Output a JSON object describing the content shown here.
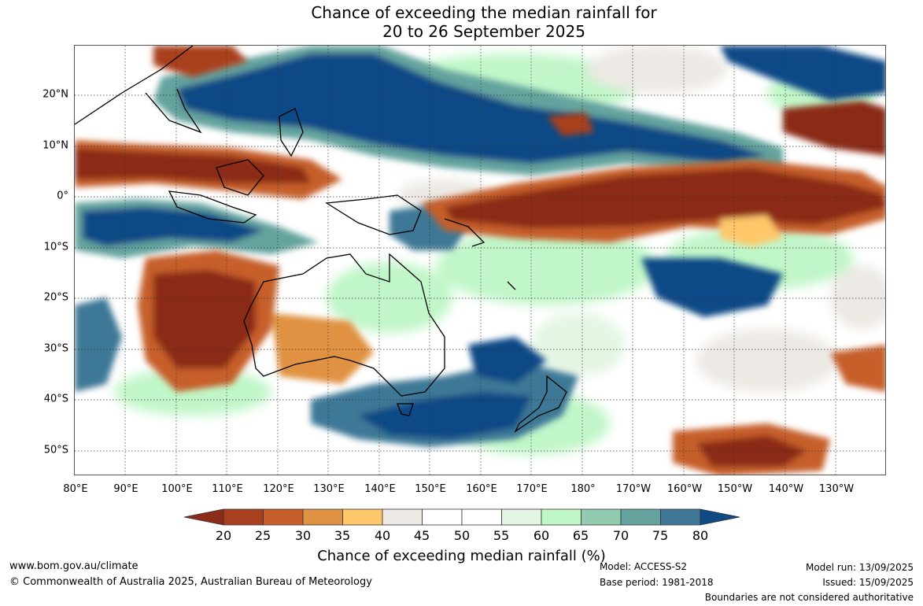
{
  "title": {
    "line1": "Chance of exceeding the median rainfall for",
    "line2": "20 to 26 September 2025"
  },
  "map": {
    "lat_labels": [
      "20°N",
      "10°N",
      "0°",
      "10°S",
      "20°S",
      "30°S",
      "40°S",
      "50°S"
    ],
    "lon_labels": [
      "80°E",
      "90°E",
      "100°E",
      "110°E",
      "120°E",
      "130°E",
      "140°E",
      "150°E",
      "160°E",
      "170°E",
      "180°",
      "170°W",
      "160°W",
      "150°W",
      "140°W",
      "130°W"
    ]
  },
  "colorbar": {
    "ticks": [
      "20",
      "25",
      "30",
      "35",
      "40",
      "45",
      "50",
      "55",
      "60",
      "65",
      "70",
      "75",
      "80"
    ],
    "colors": [
      "#8b2c18",
      "#a8401f",
      "#c65f2b",
      "#e09243",
      "#fec76a",
      "#ece9e4",
      "#ffffff",
      "#ffffff",
      "#e4f5e4",
      "#c0f6c8",
      "#93cbb0",
      "#64a39e",
      "#3e7896",
      "#0f4a86"
    ],
    "label": "Chance of exceeding median rainfall (%)"
  },
  "footer": {
    "website": "www.bom.gov.au/climate",
    "copyright": "© Commonwealth of Australia 2025, Australian Bureau of Meteorology",
    "model": "Model: ACCESS-S2",
    "base_period": "Base period: 1981-2018",
    "model_run": "Model run: 13/09/2025",
    "issued": "Issued: 15/09/2025",
    "disclaimer": "Boundaries are not considered authoritative"
  }
}
